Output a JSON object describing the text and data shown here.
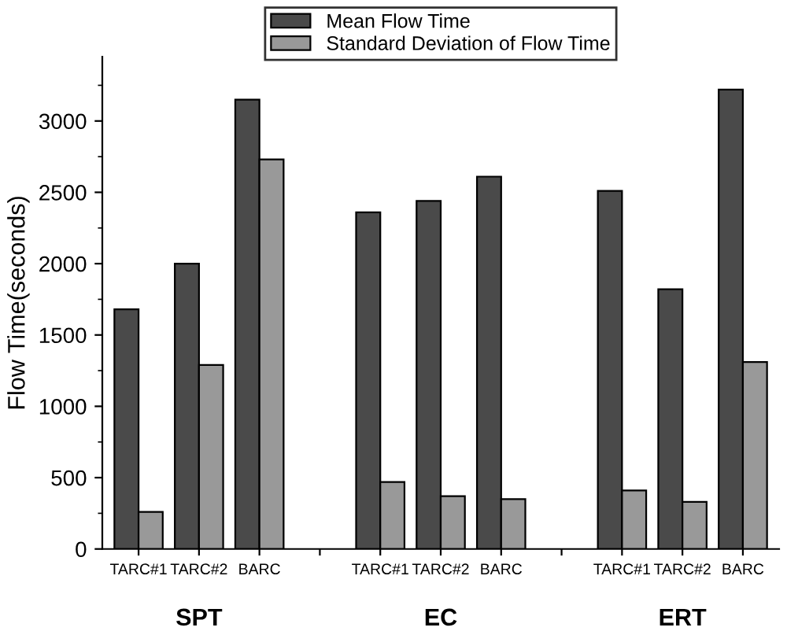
{
  "chart_data": {
    "type": "bar",
    "ylabel": "Flow Time(seconds)",
    "categories": [
      "TARC#1",
      "TARC#2",
      "BARC",
      null,
      "TARC#1",
      "TARC#2",
      "BARC",
      null,
      "TARC#1",
      "TARC#2",
      "BARC"
    ],
    "series": [
      {
        "name": "Mean Flow Time",
        "color": "#4a4a4a",
        "values": [
          1680,
          2000,
          3150,
          null,
          2360,
          2440,
          2610,
          null,
          2510,
          1820,
          3220
        ]
      },
      {
        "name": "Standard Deviation of Flow Time",
        "color": "#999999",
        "values": [
          260,
          1290,
          2730,
          null,
          470,
          370,
          350,
          null,
          410,
          330,
          1310
        ]
      }
    ],
    "annotations": [
      "SPT",
      "EC",
      "ERT"
    ],
    "ylim": [
      0,
      3450
    ],
    "yticks": [
      0,
      500,
      1000,
      1500,
      2000,
      2500,
      3000
    ],
    "grid": false,
    "legend": "top"
  }
}
